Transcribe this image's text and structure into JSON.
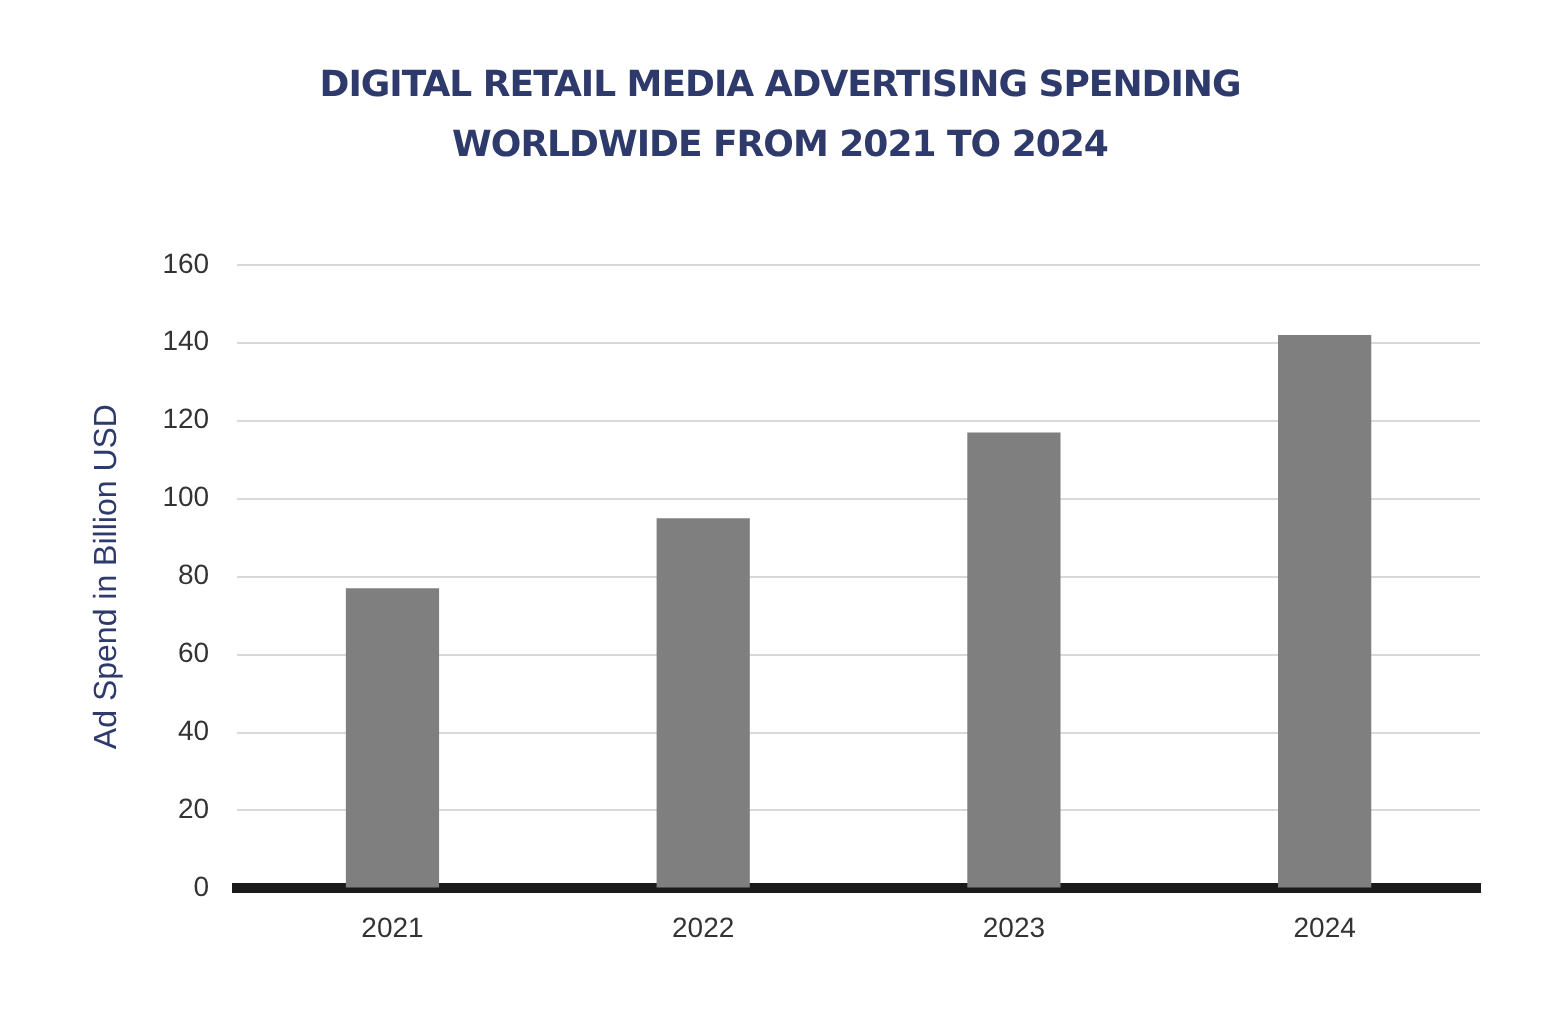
{
  "chart_data": {
    "type": "bar",
    "title": "DIGITAL RETAIL MEDIA ADVERTISING SPENDING WORLDWIDE FROM 2021 TO 2024",
    "ylabel": "Ad Spend in Billion USD",
    "categories": [
      "2021",
      "2022",
      "2023",
      "2024"
    ],
    "values": [
      77,
      95,
      117,
      142
    ],
    "color": "#7f7f7f",
    "ylim": [
      0,
      160
    ],
    "yticks": [
      0,
      20,
      40,
      60,
      80,
      100,
      120,
      140,
      160
    ],
    "grid": "y"
  }
}
